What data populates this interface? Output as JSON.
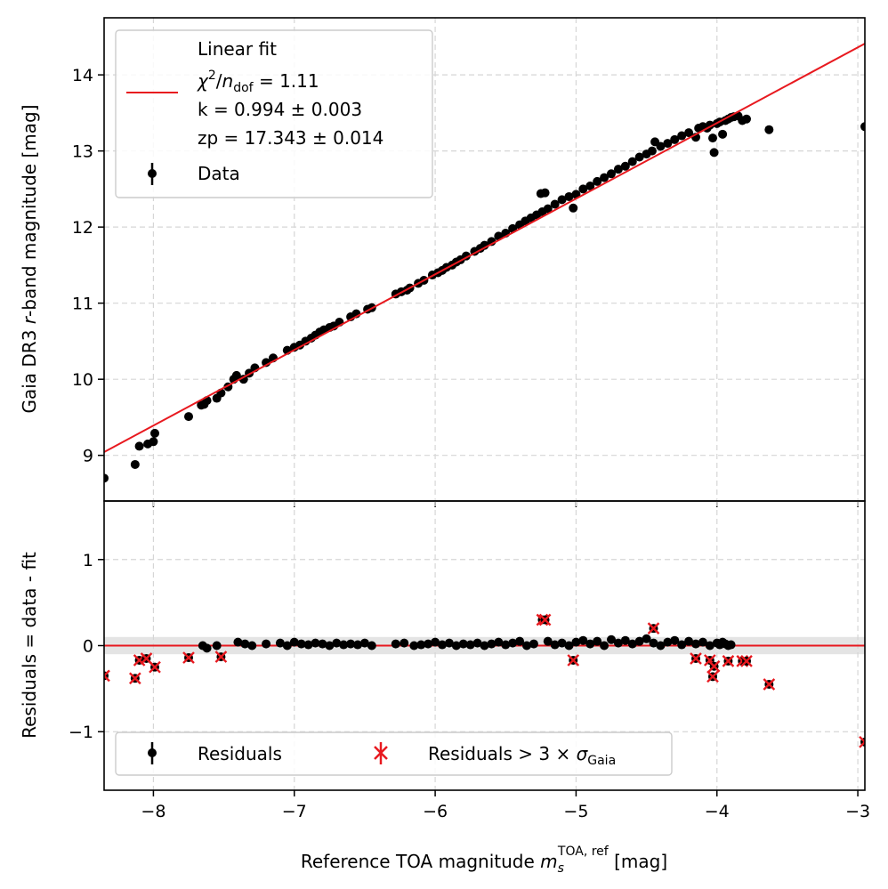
{
  "chart_data": [
    {
      "type": "scatter",
      "panel": "top",
      "ylabel_parts": [
        "Gaia DR3 ",
        "r",
        "-band magnitude [mag]"
      ],
      "xlim": [
        -8.35,
        -2.95
      ],
      "ylim": [
        8.4,
        14.75
      ],
      "yticks": [
        9,
        10,
        11,
        12,
        13,
        14
      ],
      "grid": true,
      "legend": {
        "position": "top-left",
        "fit_label": "Linear fit",
        "chi2_label": "χ²/n_dof = 1.11",
        "k_label": "k = 0.994 ± 0.003",
        "zp_label": "zp = 17.343 ± 0.014",
        "data_label": "Data"
      },
      "fit": {
        "k": 0.994,
        "zp": 17.343,
        "color": "#e8191f",
        "x_range": [
          -8.35,
          -2.95
        ]
      },
      "series": [
        {
          "name": "Data",
          "color": "#000000",
          "x": [
            -8.35,
            -8.13,
            -8.1,
            -8.04,
            -8.0,
            -7.99,
            -7.75,
            -7.66,
            -7.64,
            -7.62,
            -7.55,
            -7.52,
            -7.47,
            -7.43,
            -7.41,
            -7.36,
            -7.32,
            -7.28,
            -7.2,
            -7.15,
            -7.05,
            -7.0,
            -6.96,
            -6.92,
            -6.88,
            -6.85,
            -6.82,
            -6.79,
            -6.75,
            -6.72,
            -6.68,
            -6.6,
            -6.56,
            -6.48,
            -6.45,
            -6.28,
            -6.24,
            -6.2,
            -6.18,
            -6.12,
            -6.08,
            -6.02,
            -5.98,
            -5.95,
            -5.92,
            -5.88,
            -5.85,
            -5.82,
            -5.78,
            -5.72,
            -5.68,
            -5.65,
            -5.6,
            -5.55,
            -5.5,
            -5.45,
            -5.4,
            -5.36,
            -5.32,
            -5.28,
            -5.25,
            -5.24,
            -5.22,
            -5.2,
            -5.15,
            -5.1,
            -5.05,
            -5.02,
            -5.0,
            -4.95,
            -4.9,
            -4.85,
            -4.8,
            -4.75,
            -4.7,
            -4.65,
            -4.6,
            -4.55,
            -4.5,
            -4.46,
            -4.44,
            -4.4,
            -4.35,
            -4.3,
            -4.25,
            -4.2,
            -4.15,
            -4.13,
            -4.1,
            -4.07,
            -4.05,
            -4.03,
            -4.02,
            -4.0,
            -3.98,
            -3.96,
            -3.94,
            -3.92,
            -3.9,
            -3.88,
            -3.85,
            -3.82,
            -3.79,
            -3.63,
            -2.95
          ],
          "y": [
            8.7,
            8.88,
            9.12,
            9.15,
            9.18,
            9.29,
            9.51,
            9.66,
            9.67,
            9.72,
            9.75,
            9.82,
            9.9,
            10.0,
            10.05,
            10.0,
            10.08,
            10.15,
            10.22,
            10.28,
            10.38,
            10.42,
            10.45,
            10.5,
            10.54,
            10.58,
            10.62,
            10.65,
            10.68,
            10.7,
            10.75,
            10.82,
            10.86,
            10.92,
            10.94,
            11.12,
            11.15,
            11.17,
            11.2,
            11.26,
            11.3,
            11.37,
            11.4,
            11.43,
            11.47,
            11.5,
            11.54,
            11.57,
            11.62,
            11.68,
            11.72,
            11.76,
            11.81,
            11.88,
            11.92,
            11.98,
            12.03,
            12.08,
            12.12,
            12.16,
            12.44,
            12.2,
            12.45,
            12.24,
            12.3,
            12.36,
            12.4,
            12.25,
            12.43,
            12.5,
            12.54,
            12.6,
            12.65,
            12.7,
            12.76,
            12.8,
            12.86,
            12.92,
            12.96,
            13.0,
            13.12,
            13.06,
            13.1,
            13.15,
            13.2,
            13.24,
            13.18,
            13.3,
            13.32,
            13.3,
            13.34,
            13.17,
            12.98,
            13.36,
            13.38,
            13.22,
            13.4,
            13.42,
            13.44,
            13.45,
            13.46,
            13.4,
            13.42,
            13.28,
            13.32
          ]
        }
      ]
    },
    {
      "type": "scatter",
      "panel": "bottom",
      "xlabel_parts": [
        "Reference TOA magnitude ",
        "m",
        "s",
        "TOA, ref",
        " [mag]"
      ],
      "ylabel": "Residuals = data - fit",
      "xlim": [
        -8.35,
        -2.95
      ],
      "ylim": [
        -1.68,
        1.68
      ],
      "xticks": [
        -8,
        -7,
        -6,
        -5,
        -4,
        -3
      ],
      "yticks": [
        -1,
        0,
        1
      ],
      "grid": true,
      "band": [
        -0.1,
        0.1
      ],
      "zero_line_color": "#e8191f",
      "legend": {
        "position": "bottom-left",
        "residuals_label": "Residuals",
        "outlier_label": "Residuals > 3 × σ_Gaia"
      },
      "series": [
        {
          "name": "Residuals",
          "color": "#000000",
          "x": [
            -7.65,
            -7.62,
            -7.55,
            -7.4,
            -7.35,
            -7.3,
            -7.2,
            -7.1,
            -7.05,
            -7.0,
            -6.95,
            -6.9,
            -6.85,
            -6.8,
            -6.75,
            -6.7,
            -6.65,
            -6.6,
            -6.55,
            -6.5,
            -6.45,
            -6.28,
            -6.22,
            -6.15,
            -6.1,
            -6.05,
            -6.0,
            -5.95,
            -5.9,
            -5.85,
            -5.8,
            -5.75,
            -5.7,
            -5.65,
            -5.6,
            -5.55,
            -5.5,
            -5.45,
            -5.4,
            -5.35,
            -5.3,
            -5.2,
            -5.15,
            -5.1,
            -5.05,
            -5.0,
            -4.95,
            -4.9,
            -4.85,
            -4.8,
            -4.75,
            -4.7,
            -4.65,
            -4.6,
            -4.55,
            -4.5,
            -4.45,
            -4.4,
            -4.35,
            -4.3,
            -4.25,
            -4.2,
            -4.15,
            -4.1,
            -4.05,
            -4.0,
            -3.98,
            -3.96,
            -3.94,
            -3.92,
            -3.9
          ],
          "y": [
            0.0,
            -0.03,
            0.0,
            0.04,
            0.02,
            0.0,
            0.02,
            0.03,
            0.0,
            0.04,
            0.02,
            0.01,
            0.03,
            0.02,
            0.0,
            0.03,
            0.01,
            0.02,
            0.01,
            0.03,
            0.0,
            0.02,
            0.03,
            0.0,
            0.01,
            0.02,
            0.04,
            0.01,
            0.03,
            0.0,
            0.02,
            0.01,
            0.03,
            0.0,
            0.02,
            0.04,
            0.01,
            0.03,
            0.05,
            0.0,
            0.02,
            0.05,
            0.01,
            0.03,
            0.0,
            0.04,
            0.06,
            0.02,
            0.05,
            0.0,
            0.07,
            0.03,
            0.06,
            0.02,
            0.05,
            0.08,
            0.03,
            0.0,
            0.04,
            0.06,
            0.01,
            0.05,
            0.02,
            0.04,
            0.0,
            0.03,
            0.01,
            0.04,
            0.02,
            0.0,
            0.01
          ]
        },
        {
          "name": "Residuals > 3 × σ_Gaia",
          "color": "#e8191f",
          "x": [
            -8.35,
            -8.13,
            -8.1,
            -8.05,
            -7.99,
            -7.75,
            -7.52,
            -5.24,
            -5.22,
            -5.02,
            -4.45,
            -4.15,
            -4.05,
            -4.03,
            -4.02,
            -3.92,
            -3.82,
            -3.79,
            -3.63,
            -2.95
          ],
          "y": [
            -0.35,
            -0.38,
            -0.17,
            -0.15,
            -0.25,
            -0.14,
            -0.13,
            0.3,
            0.3,
            -0.17,
            0.2,
            -0.15,
            -0.17,
            -0.36,
            -0.24,
            -0.18,
            -0.18,
            -0.18,
            -0.45,
            -1.12
          ]
        }
      ]
    }
  ]
}
